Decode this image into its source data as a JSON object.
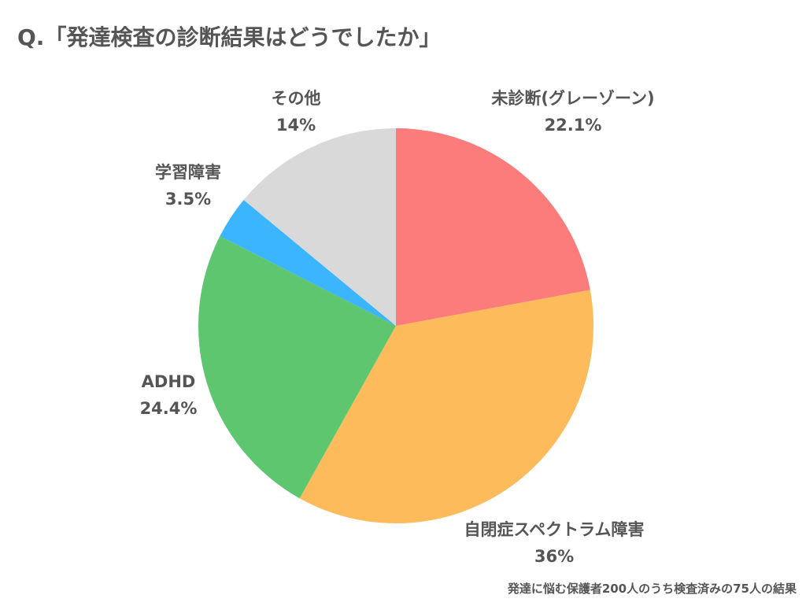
{
  "title": "Q.「発達検査の診断結果はどうでしたか」",
  "footnote": "発達に悩む保護者200人のうち検査済みの75人の結果",
  "chart_data": {
    "type": "pie",
    "title": "Q.「発達検査の診断結果はどうでしたか」",
    "slices": [
      {
        "label": "未診断(グレーゾーン)",
        "value": 22.1,
        "display": "22.1%",
        "color": "#fc7b7b"
      },
      {
        "label": "自閉症スペクトラム障害",
        "value": 36,
        "display": "36%",
        "color": "#fdbb5c"
      },
      {
        "label": "ADHD",
        "value": 24.4,
        "display": "24.4%",
        "color": "#5ec66f"
      },
      {
        "label": "学習障害",
        "value": 3.5,
        "display": "3.5%",
        "color": "#3bb5fd"
      },
      {
        "label": "その他",
        "value": 14,
        "display": "14%",
        "color": "#d9d9d9"
      }
    ]
  }
}
